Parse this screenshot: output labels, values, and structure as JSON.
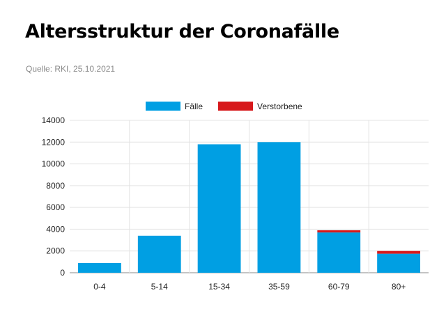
{
  "header": {
    "title": "Altersstruktur der Coronafälle",
    "source": "Quelle: RKI, 25.10.2021"
  },
  "colors": {
    "cases": "#009fe3",
    "deaths": "#d7191c",
    "grid": "#e3e3e3"
  },
  "chart_data": {
    "type": "bar",
    "stacked": true,
    "categories": [
      "0-4",
      "5-14",
      "15-34",
      "35-59",
      "60-79",
      "80+"
    ],
    "series": [
      {
        "name": "Fälle",
        "color": "#009fe3",
        "values": [
          900,
          3400,
          11800,
          12000,
          3700,
          1750
        ]
      },
      {
        "name": "Verstorbene",
        "color": "#d7191c",
        "values": [
          0,
          0,
          0,
          0,
          200,
          250
        ]
      }
    ],
    "ylim": [
      0,
      14000
    ],
    "yticks": [
      0,
      2000,
      4000,
      6000,
      8000,
      10000,
      12000,
      14000
    ],
    "grid": true,
    "legend": "top-center"
  }
}
